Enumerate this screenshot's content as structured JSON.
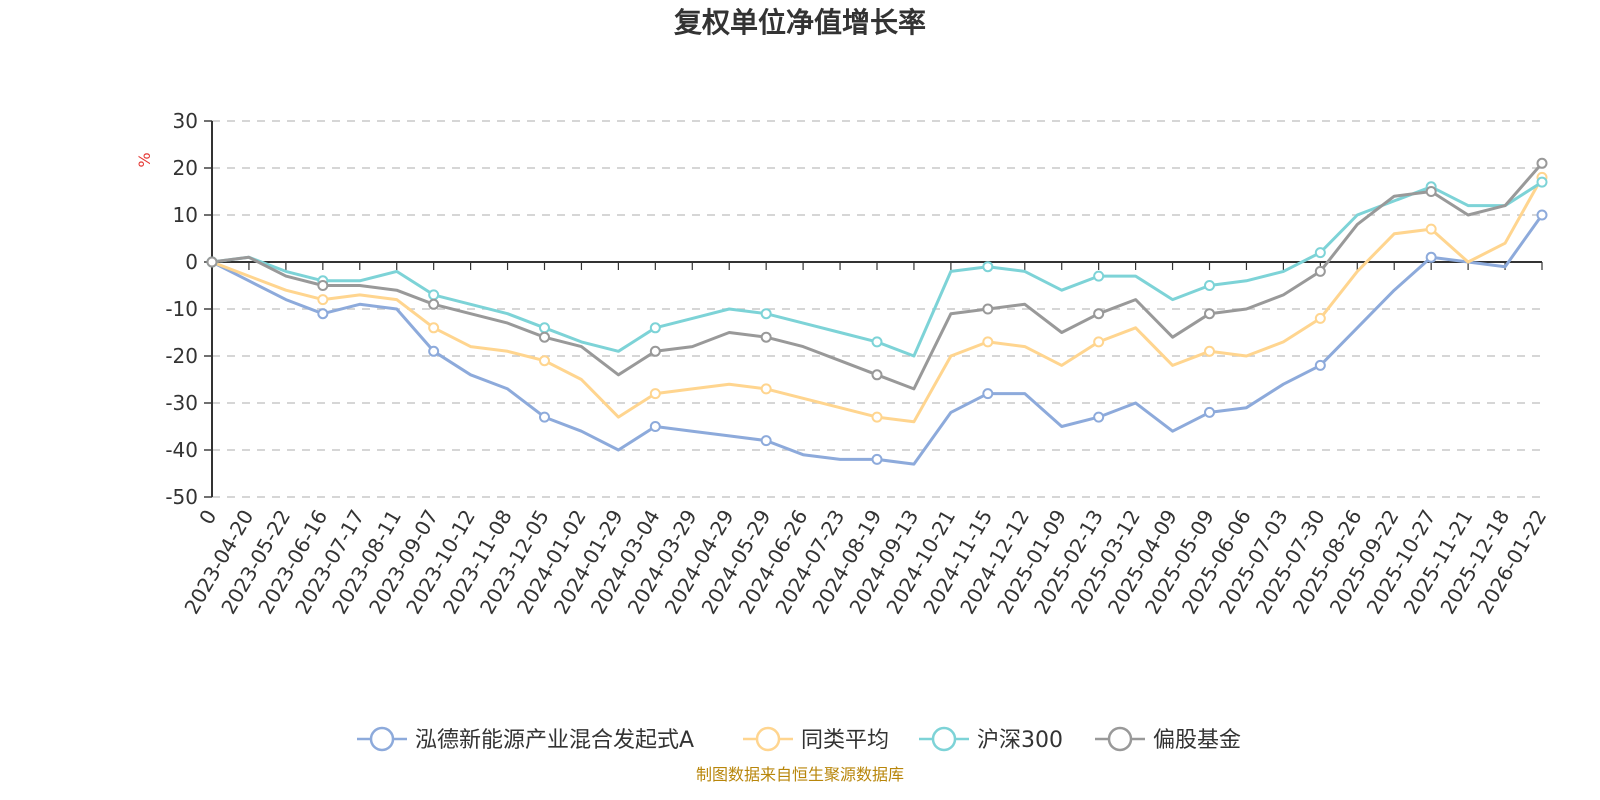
{
  "colors": {
    "fund": "#8DAADB",
    "peer": "#FFD58F",
    "hs300": "#7DD3D7",
    "equity": "#999999",
    "grid": "#c8c8c8",
    "axis": "#333333",
    "unit": "#e53935",
    "source": "#b8860b",
    "title": "#333333"
  },
  "chart_data": {
    "type": "line",
    "title": "复权单位净值增长率",
    "ylabel": "%",
    "xlabel": "",
    "ylim": [
      -50,
      30
    ],
    "yticks": [
      "30",
      "20",
      "10",
      "0",
      "-10",
      "-20",
      "-30",
      "-40",
      "-50"
    ],
    "grid": true,
    "legend_position": "bottom-center",
    "source": "制图数据来自恒生聚源数据库",
    "categories": [
      "0",
      "2023-04-20",
      "2023-05-22",
      "2023-06-16",
      "2023-07-17",
      "2023-08-11",
      "2023-09-07",
      "2023-10-12",
      "2023-11-08",
      "2023-12-05",
      "2024-01-02",
      "2024-01-29",
      "2024-03-04",
      "2024-03-29",
      "2024-04-29",
      "2024-05-29",
      "2024-06-26",
      "2024-07-23",
      "2024-08-19",
      "2024-09-13",
      "2024-10-21",
      "2024-11-15",
      "2024-12-12",
      "2025-01-09",
      "2025-02-13",
      "2025-03-12",
      "2025-04-09",
      "2025-05-09",
      "2025-06-06",
      "2025-07-03",
      "2025-07-30",
      "2025-08-26",
      "2025-09-22",
      "2025-10-27",
      "2025-11-21",
      "2025-12-18",
      "2026-01-22"
    ],
    "series": [
      {
        "name": "泓德新能源产业混合发起式A",
        "color_key": "fund",
        "values": [
          0,
          -4,
          -8,
          -11,
          -9,
          -10,
          -19,
          -24,
          -27,
          -33,
          -36,
          -40,
          -35,
          -36,
          -37,
          -38,
          -41,
          -42,
          -42,
          -43,
          -32,
          -28,
          -28,
          -35,
          -33,
          -30,
          -36,
          -32,
          -31,
          -26,
          -22,
          -14,
          -6,
          1,
          0,
          -1,
          10
        ]
      },
      {
        "name": "同类平均",
        "color_key": "peer",
        "values": [
          0,
          -3,
          -6,
          -8,
          -7,
          -8,
          -14,
          -18,
          -19,
          -21,
          -25,
          -33,
          -28,
          -27,
          -26,
          -27,
          -29,
          -31,
          -33,
          -34,
          -20,
          -17,
          -18,
          -22,
          -17,
          -14,
          -22,
          -19,
          -20,
          -17,
          -12,
          -2,
          6,
          7,
          0,
          4,
          18
        ]
      },
      {
        "name": "沪深300",
        "color_key": "hs300",
        "values": [
          0,
          1,
          -2,
          -4,
          -4,
          -2,
          -7,
          -9,
          -11,
          -14,
          -17,
          -19,
          -14,
          -12,
          -10,
          -11,
          -13,
          -15,
          -17,
          -20,
          -2,
          -1,
          -2,
          -6,
          -3,
          -3,
          -8,
          -5,
          -4,
          -2,
          2,
          10,
          13,
          16,
          12,
          12,
          17
        ]
      },
      {
        "name": "偏股基金",
        "color_key": "equity",
        "values": [
          0,
          1,
          -3,
          -5,
          -5,
          -6,
          -9,
          -11,
          -13,
          -16,
          -18,
          -24,
          -19,
          -18,
          -15,
          -16,
          -18,
          -21,
          -24,
          -27,
          -11,
          -10,
          -9,
          -15,
          -11,
          -8,
          -16,
          -11,
          -10,
          -7,
          -2,
          8,
          14,
          15,
          10,
          12,
          21
        ]
      }
    ]
  }
}
